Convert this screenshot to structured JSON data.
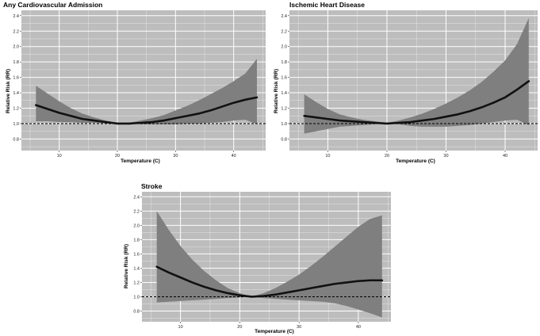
{
  "chart_data": [
    {
      "type": "line",
      "title": "Any Cardiovascular Admission",
      "xlabel": "Temperature (C)",
      "ylabel": "Relative Risk (RR)",
      "xlim": [
        3.5,
        45.5
      ],
      "ylim": [
        0.65,
        2.47
      ],
      "xticks": [
        10,
        20,
        30,
        40
      ],
      "yticks": [
        0.8,
        1.0,
        1.2,
        1.4,
        1.6,
        1.8,
        2.0,
        2.2,
        2.4
      ],
      "tick_labels_x": [
        "10",
        "20",
        "30",
        "40"
      ],
      "tick_labels_y": [
        "0.8",
        "1.0",
        "1.2",
        "1.4",
        "1.6",
        "1.8",
        "2.0",
        "2.2",
        "2.4"
      ],
      "reference_line": 1.0,
      "series": [
        {
          "name": "RR",
          "x": [
            6,
            8,
            10,
            12,
            14,
            16,
            18,
            20,
            22,
            24,
            26,
            28,
            30,
            32,
            34,
            36,
            38,
            40,
            42,
            44
          ],
          "values": [
            1.24,
            1.19,
            1.14,
            1.1,
            1.06,
            1.04,
            1.02,
            1.0,
            1.0,
            1.01,
            1.02,
            1.04,
            1.07,
            1.1,
            1.13,
            1.17,
            1.22,
            1.27,
            1.31,
            1.34
          ]
        },
        {
          "name": "Lower 95% CI",
          "x": [
            6,
            8,
            10,
            12,
            14,
            16,
            18,
            20,
            22,
            24,
            26,
            28,
            30,
            32,
            34,
            36,
            38,
            40,
            42,
            44
          ],
          "values": [
            1.03,
            1.03,
            1.02,
            1.02,
            1.01,
            1.01,
            1.0,
            1.0,
            1.0,
            0.99,
            0.99,
            0.99,
            0.99,
            1.0,
            1.0,
            1.01,
            1.02,
            1.04,
            1.05,
            0.99
          ]
        },
        {
          "name": "Upper 95% CI",
          "x": [
            6,
            8,
            10,
            12,
            14,
            16,
            18,
            20,
            22,
            24,
            26,
            28,
            30,
            32,
            34,
            36,
            38,
            40,
            42,
            44
          ],
          "values": [
            1.49,
            1.39,
            1.29,
            1.2,
            1.13,
            1.08,
            1.04,
            1.01,
            1.01,
            1.04,
            1.07,
            1.11,
            1.17,
            1.23,
            1.3,
            1.38,
            1.46,
            1.55,
            1.65,
            1.84
          ]
        }
      ]
    },
    {
      "type": "line",
      "title": "Ischemic Heart Disease",
      "xlabel": "Temperature (C)",
      "ylabel": "Relative Risk (RR)",
      "xlim": [
        3.5,
        45.5
      ],
      "ylim": [
        0.65,
        2.47
      ],
      "xticks": [
        10,
        20,
        30,
        40
      ],
      "yticks": [
        0.8,
        1.0,
        1.2,
        1.4,
        1.6,
        1.8,
        2.0,
        2.2,
        2.4
      ],
      "tick_labels_x": [
        "10",
        "20",
        "30",
        "40"
      ],
      "tick_labels_y": [
        "0.8",
        "1.0",
        "1.2",
        "1.4",
        "1.6",
        "1.8",
        "2.0",
        "2.2",
        "2.4"
      ],
      "reference_line": 1.0,
      "series": [
        {
          "name": "RR",
          "x": [
            6,
            8,
            10,
            12,
            14,
            16,
            18,
            20,
            22,
            24,
            26,
            28,
            30,
            32,
            34,
            36,
            38,
            40,
            42,
            44
          ],
          "values": [
            1.1,
            1.08,
            1.06,
            1.04,
            1.03,
            1.02,
            1.01,
            1.0,
            1.01,
            1.02,
            1.04,
            1.06,
            1.09,
            1.12,
            1.16,
            1.21,
            1.27,
            1.34,
            1.44,
            1.55
          ]
        },
        {
          "name": "Lower 95% CI",
          "x": [
            6,
            8,
            10,
            12,
            14,
            16,
            18,
            20,
            22,
            24,
            26,
            28,
            30,
            32,
            34,
            36,
            38,
            40,
            42,
            44
          ],
          "values": [
            0.87,
            0.9,
            0.93,
            0.96,
            0.97,
            0.98,
            0.99,
            1.0,
            0.99,
            0.97,
            0.96,
            0.96,
            0.96,
            0.97,
            0.98,
            1.0,
            1.02,
            1.04,
            1.05,
            0.98
          ]
        },
        {
          "name": "Upper 95% CI",
          "x": [
            6,
            8,
            10,
            12,
            14,
            16,
            18,
            20,
            22,
            24,
            26,
            28,
            30,
            32,
            34,
            36,
            38,
            40,
            42,
            44
          ],
          "values": [
            1.38,
            1.28,
            1.19,
            1.12,
            1.08,
            1.05,
            1.03,
            1.01,
            1.04,
            1.08,
            1.13,
            1.19,
            1.26,
            1.34,
            1.43,
            1.54,
            1.67,
            1.82,
            2.03,
            2.37
          ]
        }
      ]
    },
    {
      "type": "line",
      "title": "Stroke",
      "xlabel": "Temperature (C)",
      "ylabel": "Relative Risk (RR)",
      "xlim": [
        3.5,
        45.5
      ],
      "ylim": [
        0.65,
        2.47
      ],
      "xticks": [
        10,
        20,
        30,
        40
      ],
      "yticks": [
        0.8,
        1.0,
        1.2,
        1.4,
        1.6,
        1.8,
        2.0,
        2.2,
        2.4
      ],
      "tick_labels_x": [
        "10",
        "20",
        "30",
        "40"
      ],
      "tick_labels_y": [
        "0.8",
        "1.0",
        "1.2",
        "1.4",
        "1.6",
        "1.8",
        "2.0",
        "2.2",
        "2.4"
      ],
      "reference_line": 1.0,
      "series": [
        {
          "name": "RR",
          "x": [
            6,
            8,
            10,
            12,
            14,
            16,
            18,
            20,
            22,
            24,
            26,
            28,
            30,
            32,
            34,
            36,
            38,
            40,
            42,
            44
          ],
          "values": [
            1.42,
            1.34,
            1.27,
            1.2,
            1.14,
            1.09,
            1.05,
            1.02,
            1.0,
            1.01,
            1.03,
            1.06,
            1.09,
            1.12,
            1.15,
            1.18,
            1.2,
            1.22,
            1.23,
            1.23
          ]
        },
        {
          "name": "Lower 95% CI",
          "x": [
            6,
            8,
            10,
            12,
            14,
            16,
            18,
            20,
            22,
            24,
            26,
            28,
            30,
            32,
            34,
            36,
            38,
            40,
            42,
            44
          ],
          "values": [
            0.92,
            0.93,
            0.94,
            0.95,
            0.96,
            0.97,
            0.98,
            0.99,
            1.0,
            0.98,
            0.97,
            0.96,
            0.95,
            0.94,
            0.93,
            0.91,
            0.87,
            0.82,
            0.77,
            0.71
          ]
        },
        {
          "name": "Upper 95% CI",
          "x": [
            6,
            8,
            10,
            12,
            14,
            16,
            18,
            20,
            22,
            24,
            26,
            28,
            30,
            32,
            34,
            36,
            38,
            40,
            42,
            44
          ],
          "values": [
            2.2,
            1.94,
            1.71,
            1.52,
            1.36,
            1.23,
            1.12,
            1.05,
            1.0,
            1.05,
            1.12,
            1.21,
            1.31,
            1.43,
            1.56,
            1.7,
            1.84,
            1.98,
            2.09,
            2.14
          ]
        }
      ]
    }
  ],
  "colors": {
    "panel_bg": "#bdbdbd",
    "ci_band": "#7f7f7f",
    "line": "#111111",
    "grid": "#ffffff",
    "reference": "#000000"
  }
}
